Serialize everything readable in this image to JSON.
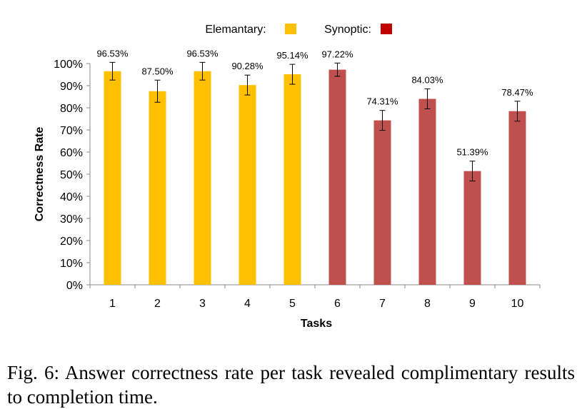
{
  "chart_data": {
    "type": "bar",
    "categories": [
      "1",
      "2",
      "3",
      "4",
      "5",
      "6",
      "7",
      "8",
      "9",
      "10"
    ],
    "values": [
      96.53,
      87.5,
      96.53,
      90.28,
      95.14,
      97.22,
      74.31,
      84.03,
      51.39,
      78.47
    ],
    "data_labels": [
      "96.53%",
      "87.50%",
      "96.53%",
      "90.28%",
      "95.14%",
      "97.22%",
      "74.31%",
      "84.03%",
      "51.39%",
      "78.47%"
    ],
    "error": [
      4,
      5,
      4,
      4.5,
      4.5,
      3,
      4.5,
      4.5,
      4.5,
      4.5
    ],
    "groups": [
      "Elemantary",
      "Elemantary",
      "Elemantary",
      "Elemantary",
      "Elemantary",
      "Synoptic",
      "Synoptic",
      "Synoptic",
      "Synoptic",
      "Synoptic"
    ],
    "legend": [
      {
        "label": "Elemantary:",
        "color": "#FFC000"
      },
      {
        "label": "Synoptic:",
        "color": "#C00000"
      }
    ],
    "bar_colors": {
      "Elemantary": "#FFC000",
      "Synoptic": "#C0504D"
    },
    "xlabel": "Tasks",
    "ylabel": "Correctness Rate",
    "ylim": [
      0,
      100
    ],
    "yticks": [
      "0%",
      "10%",
      "20%",
      "30%",
      "40%",
      "50%",
      "60%",
      "70%",
      "80%",
      "90%",
      "100%"
    ],
    "grid": false,
    "legend_position": "top-center"
  },
  "caption": "Fig. 6: Answer correctness rate per task revealed complimentary results to completion time."
}
